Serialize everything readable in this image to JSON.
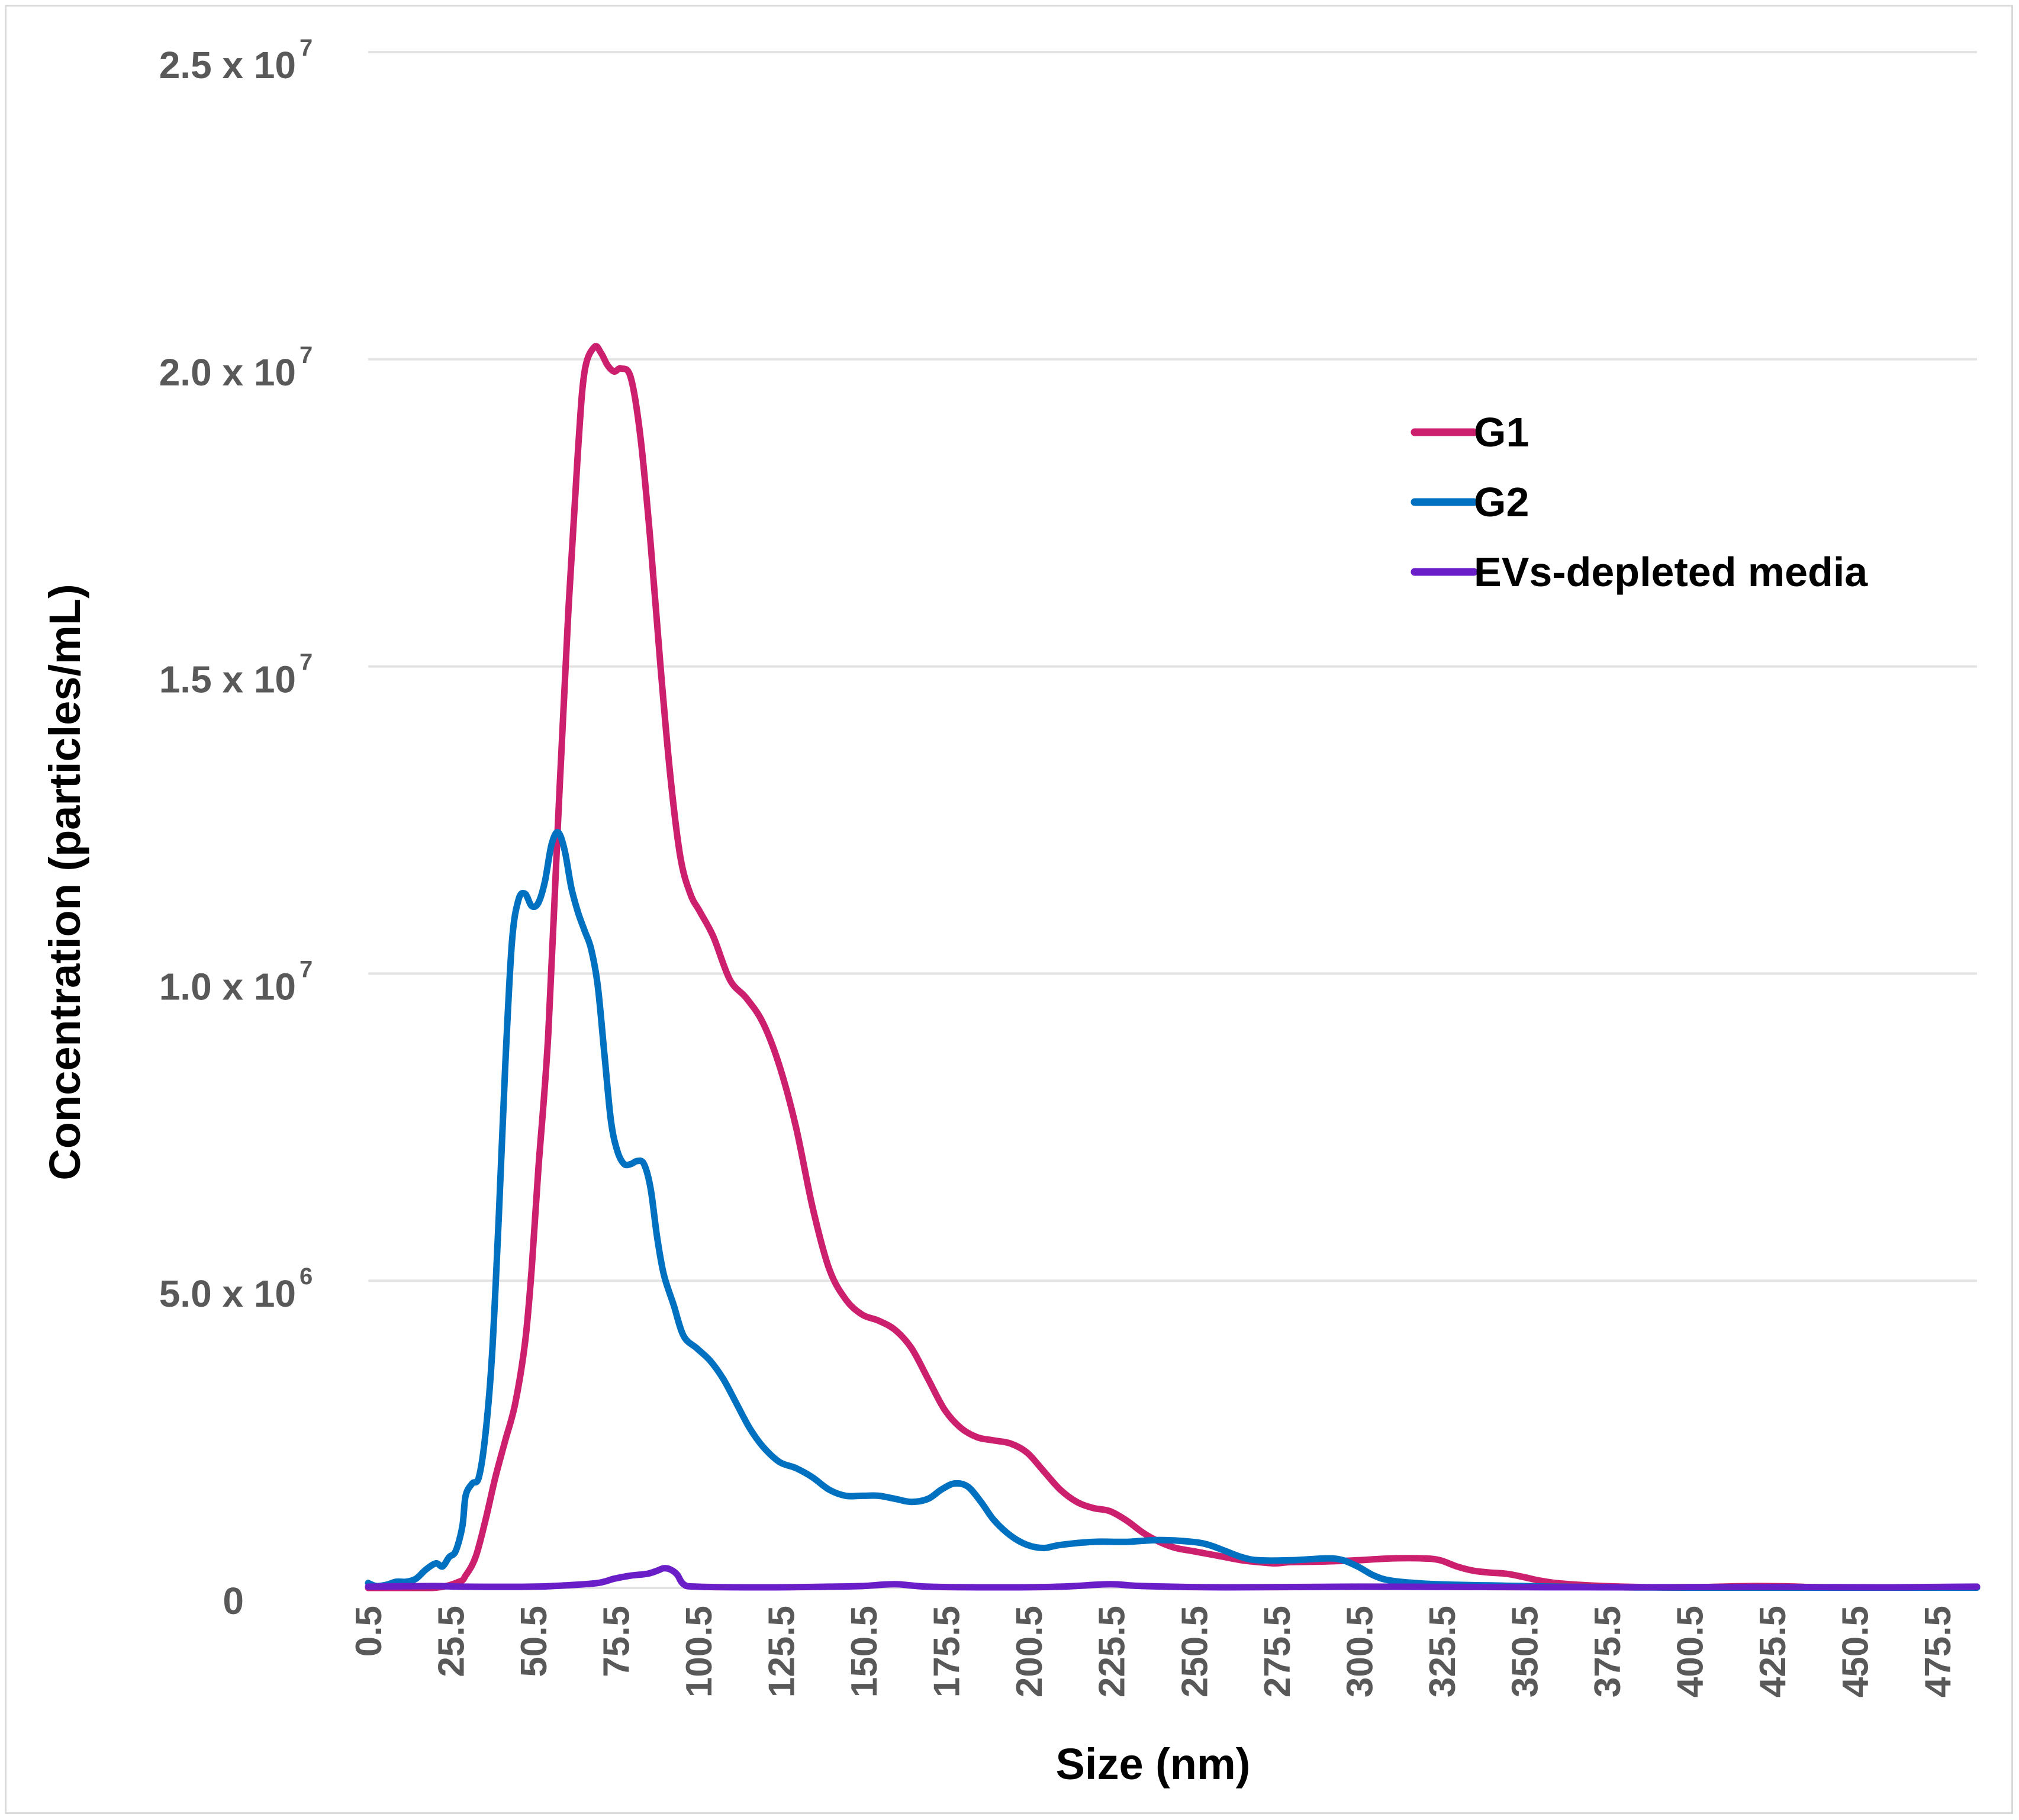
{
  "chart_data": {
    "type": "line",
    "xlabel": "Size (nm)",
    "ylabel": "Concentration (particles/mL)",
    "xlim": [
      0.5,
      487.5
    ],
    "ylim": [
      0,
      25000000
    ],
    "grid": "horizontal",
    "legend_position": "top-right",
    "x_ticks": [
      {
        "value": 0.5,
        "label": "0.5"
      },
      {
        "value": 25.5,
        "label": "25.5"
      },
      {
        "value": 50.5,
        "label": "50.5"
      },
      {
        "value": 75.5,
        "label": "75.5"
      },
      {
        "value": 100.5,
        "label": "100.5"
      },
      {
        "value": 125.5,
        "label": "125.5"
      },
      {
        "value": 150.5,
        "label": "150.5"
      },
      {
        "value": 175.5,
        "label": "175.5"
      },
      {
        "value": 200.5,
        "label": "200.5"
      },
      {
        "value": 225.5,
        "label": "225.5"
      },
      {
        "value": 250.5,
        "label": "250.5"
      },
      {
        "value": 275.5,
        "label": "275.5"
      },
      {
        "value": 300.5,
        "label": "300.5"
      },
      {
        "value": 325.5,
        "label": "325.5"
      },
      {
        "value": 350.5,
        "label": "350.5"
      },
      {
        "value": 375.5,
        "label": "375.5"
      },
      {
        "value": 400.5,
        "label": "400.5"
      },
      {
        "value": 425.5,
        "label": "425.5"
      },
      {
        "value": 450.5,
        "label": "450.5"
      },
      {
        "value": 475.5,
        "label": "475.5"
      }
    ],
    "y_ticks": [
      {
        "value": 0,
        "mantissa": "0",
        "exponent": ""
      },
      {
        "value": 5000000,
        "mantissa": "5.0 x 10",
        "exponent": "6"
      },
      {
        "value": 10000000,
        "mantissa": "1.0 x 10",
        "exponent": "7"
      },
      {
        "value": 15000000,
        "mantissa": "1.5 x 10",
        "exponent": "7"
      },
      {
        "value": 20000000,
        "mantissa": "2.0 x 10",
        "exponent": "7"
      },
      {
        "value": 25000000,
        "mantissa": "2.5 x 10",
        "exponent": "7"
      }
    ],
    "series": [
      {
        "name": "G1",
        "color": "#cc1f6e",
        "points": [
          [
            0.5,
            0
          ],
          [
            20,
            0
          ],
          [
            28,
            100000
          ],
          [
            30,
            200000
          ],
          [
            33,
            500000
          ],
          [
            36,
            1100000
          ],
          [
            39,
            1800000
          ],
          [
            42,
            2400000
          ],
          [
            45,
            3000000
          ],
          [
            48,
            4000000
          ],
          [
            50,
            5200000
          ],
          [
            52,
            6800000
          ],
          [
            55,
            9000000
          ],
          [
            58,
            12500000
          ],
          [
            61,
            15800000
          ],
          [
            64,
            18500000
          ],
          [
            66,
            19800000
          ],
          [
            69,
            20200000
          ],
          [
            71,
            20100000
          ],
          [
            73,
            19900000
          ],
          [
            75,
            19800000
          ],
          [
            77,
            19850000
          ],
          [
            80,
            19700000
          ],
          [
            83,
            18700000
          ],
          [
            86,
            17000000
          ],
          [
            89,
            15000000
          ],
          [
            92,
            13200000
          ],
          [
            95,
            11900000
          ],
          [
            98,
            11300000
          ],
          [
            101,
            11000000
          ],
          [
            105,
            10600000
          ],
          [
            110,
            9900000
          ],
          [
            115,
            9600000
          ],
          [
            120,
            9200000
          ],
          [
            125,
            8500000
          ],
          [
            130,
            7500000
          ],
          [
            135,
            6200000
          ],
          [
            140,
            5200000
          ],
          [
            145,
            4700000
          ],
          [
            150,
            4450000
          ],
          [
            155,
            4350000
          ],
          [
            160,
            4200000
          ],
          [
            165,
            3900000
          ],
          [
            170,
            3400000
          ],
          [
            175,
            2900000
          ],
          [
            180,
            2600000
          ],
          [
            185,
            2450000
          ],
          [
            190,
            2400000
          ],
          [
            195,
            2350000
          ],
          [
            200,
            2200000
          ],
          [
            205,
            1900000
          ],
          [
            210,
            1600000
          ],
          [
            215,
            1400000
          ],
          [
            220,
            1300000
          ],
          [
            225,
            1250000
          ],
          [
            230,
            1100000
          ],
          [
            235,
            900000
          ],
          [
            240,
            750000
          ],
          [
            245,
            650000
          ],
          [
            250,
            600000
          ],
          [
            255,
            550000
          ],
          [
            260,
            500000
          ],
          [
            265,
            450000
          ],
          [
            270,
            420000
          ],
          [
            275,
            400000
          ],
          [
            280,
            420000
          ],
          [
            290,
            430000
          ],
          [
            300,
            450000
          ],
          [
            310,
            480000
          ],
          [
            320,
            480000
          ],
          [
            325,
            450000
          ],
          [
            330,
            350000
          ],
          [
            335,
            280000
          ],
          [
            340,
            250000
          ],
          [
            345,
            230000
          ],
          [
            350,
            180000
          ],
          [
            355,
            120000
          ],
          [
            360,
            80000
          ],
          [
            370,
            40000
          ],
          [
            380,
            20000
          ],
          [
            390,
            10000
          ],
          [
            400,
            5000
          ],
          [
            410,
            20000
          ],
          [
            420,
            30000
          ],
          [
            430,
            25000
          ],
          [
            440,
            10000
          ],
          [
            460,
            5000
          ],
          [
            487.5,
            10000
          ]
        ]
      },
      {
        "name": "G2",
        "color": "#0070c0",
        "points": [
          [
            0.5,
            80000
          ],
          [
            3,
            30000
          ],
          [
            6,
            50000
          ],
          [
            9,
            100000
          ],
          [
            12,
            100000
          ],
          [
            15,
            150000
          ],
          [
            18,
            300000
          ],
          [
            21,
            400000
          ],
          [
            23,
            350000
          ],
          [
            25,
            500000
          ],
          [
            27,
            600000
          ],
          [
            29,
            1000000
          ],
          [
            30,
            1500000
          ],
          [
            32,
            1700000
          ],
          [
            34,
            1800000
          ],
          [
            36,
            2500000
          ],
          [
            38,
            3800000
          ],
          [
            40,
            6000000
          ],
          [
            42,
            8500000
          ],
          [
            44,
            10500000
          ],
          [
            46,
            11200000
          ],
          [
            48,
            11300000
          ],
          [
            50,
            11100000
          ],
          [
            52,
            11150000
          ],
          [
            54,
            11500000
          ],
          [
            56,
            12100000
          ],
          [
            58,
            12300000
          ],
          [
            60,
            12000000
          ],
          [
            62,
            11400000
          ],
          [
            64,
            11000000
          ],
          [
            66,
            10700000
          ],
          [
            68,
            10400000
          ],
          [
            70,
            9800000
          ],
          [
            72,
            8700000
          ],
          [
            74,
            7600000
          ],
          [
            76,
            7100000
          ],
          [
            78,
            6900000
          ],
          [
            80,
            6900000
          ],
          [
            82,
            6950000
          ],
          [
            84,
            6900000
          ],
          [
            86,
            6500000
          ],
          [
            88,
            5700000
          ],
          [
            90,
            5100000
          ],
          [
            93,
            4600000
          ],
          [
            96,
            4100000
          ],
          [
            100,
            3900000
          ],
          [
            104,
            3700000
          ],
          [
            108,
            3400000
          ],
          [
            112,
            3000000
          ],
          [
            116,
            2600000
          ],
          [
            120,
            2300000
          ],
          [
            125,
            2050000
          ],
          [
            130,
            1950000
          ],
          [
            135,
            1800000
          ],
          [
            140,
            1600000
          ],
          [
            145,
            1500000
          ],
          [
            150,
            1500000
          ],
          [
            155,
            1500000
          ],
          [
            160,
            1450000
          ],
          [
            165,
            1400000
          ],
          [
            170,
            1450000
          ],
          [
            174,
            1600000
          ],
          [
            178,
            1700000
          ],
          [
            182,
            1650000
          ],
          [
            186,
            1400000
          ],
          [
            190,
            1100000
          ],
          [
            195,
            850000
          ],
          [
            200,
            700000
          ],
          [
            205,
            650000
          ],
          [
            210,
            700000
          ],
          [
            220,
            750000
          ],
          [
            230,
            750000
          ],
          [
            240,
            780000
          ],
          [
            250,
            750000
          ],
          [
            255,
            700000
          ],
          [
            260,
            600000
          ],
          [
            265,
            500000
          ],
          [
            270,
            450000
          ],
          [
            280,
            450000
          ],
          [
            290,
            480000
          ],
          [
            295,
            460000
          ],
          [
            300,
            350000
          ],
          [
            305,
            200000
          ],
          [
            310,
            120000
          ],
          [
            320,
            70000
          ],
          [
            330,
            50000
          ],
          [
            340,
            40000
          ],
          [
            350,
            30000
          ],
          [
            360,
            20000
          ],
          [
            380,
            10000
          ],
          [
            400,
            5000
          ],
          [
            487.5,
            5000
          ]
        ]
      },
      {
        "name": "EVs-depleted media",
        "color": "#6a1ec8",
        "points": [
          [
            0.5,
            20000
          ],
          [
            20,
            30000
          ],
          [
            30,
            20000
          ],
          [
            50,
            20000
          ],
          [
            60,
            40000
          ],
          [
            70,
            80000
          ],
          [
            75,
            150000
          ],
          [
            80,
            200000
          ],
          [
            85,
            230000
          ],
          [
            88,
            280000
          ],
          [
            90,
            320000
          ],
          [
            92,
            300000
          ],
          [
            94,
            220000
          ],
          [
            96,
            60000
          ],
          [
            100,
            20000
          ],
          [
            120,
            10000
          ],
          [
            140,
            20000
          ],
          [
            150,
            30000
          ],
          [
            160,
            60000
          ],
          [
            170,
            20000
          ],
          [
            190,
            10000
          ],
          [
            210,
            20000
          ],
          [
            225,
            60000
          ],
          [
            235,
            30000
          ],
          [
            260,
            10000
          ],
          [
            300,
            20000
          ],
          [
            330,
            15000
          ],
          [
            380,
            10000
          ],
          [
            420,
            15000
          ],
          [
            460,
            10000
          ],
          [
            487.5,
            20000
          ]
        ]
      }
    ]
  }
}
